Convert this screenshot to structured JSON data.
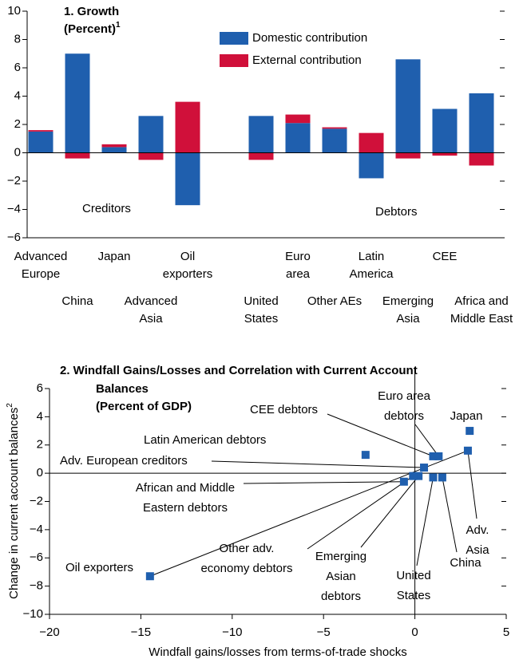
{
  "chart_data": [
    {
      "type": "bar",
      "stacked": true,
      "title": "1. Growth",
      "subtitle": "(Percent)",
      "subtitle_superscript": "1",
      "categories": [
        [
          "Advanced",
          "Europe"
        ],
        [
          "China"
        ],
        [
          "Japan"
        ],
        [
          "Advanced",
          "Asia"
        ],
        [
          "Oil",
          "exporters"
        ],
        null,
        [
          "United",
          "States"
        ],
        [
          "Euro",
          "area"
        ],
        [
          "Other AEs"
        ],
        [
          "Latin",
          "America"
        ],
        [
          "Emerging",
          "Asia"
        ],
        [
          "CEE"
        ],
        [
          "Africa and",
          "Middle East"
        ]
      ],
      "series": [
        {
          "name": "Domestic contribution",
          "color": "#1f5fae",
          "values": [
            1.5,
            7.0,
            0.4,
            2.6,
            -3.7,
            null,
            2.6,
            2.1,
            1.7,
            -1.8,
            6.6,
            3.1,
            4.2
          ]
        },
        {
          "name": "External contribution",
          "color": "#d0103a",
          "values": [
            0.1,
            -0.4,
            0.2,
            -0.5,
            3.6,
            null,
            -0.5,
            0.6,
            0.1,
            1.4,
            -0.4,
            -0.2,
            -0.9
          ]
        }
      ],
      "annotations": [
        "Creditors",
        "Debtors"
      ],
      "ylim": [
        -6,
        10
      ],
      "yticks": [
        {
          "value": -6,
          "label": "−6"
        },
        {
          "value": -4,
          "label": "−4"
        },
        {
          "value": -2,
          "label": "−2"
        },
        0,
        2,
        4,
        6,
        8,
        10
      ]
    },
    {
      "type": "scatter",
      "title": [
        "2. Windfall Gains/Losses and Correlation with Current Account",
        "Balances"
      ],
      "subtitle": "(Percent of GDP)",
      "xlabel": "Windfall gains/losses from terms-of-trade shocks",
      "ylabel": "Change in current account balances",
      "ylabel_superscript": "2",
      "series": [
        {
          "color": "#1f5fae",
          "x": [
            -14.5,
            -2.7,
            0.5,
            1.0,
            1.3,
            3.0,
            -0.6,
            2.9,
            1.5,
            1.0,
            0.2,
            -0.1
          ],
          "values": [
            -7.3,
            1.3,
            0.4,
            1.2,
            1.2,
            3.0,
            -0.6,
            1.6,
            -0.3,
            -0.3,
            -0.2,
            -0.2
          ],
          "labels": [
            [
              "Oil exporters"
            ],
            [
              "Latin American debtors"
            ],
            [
              "Adv. European creditors"
            ],
            [
              "CEE debtors"
            ],
            [
              "Euro area",
              "debtors"
            ],
            [
              "Japan"
            ],
            [
              "African and Middle",
              "Eastern debtors"
            ],
            [
              "Adv.",
              "Asia"
            ],
            [
              "China"
            ],
            [
              "United",
              "States"
            ],
            [
              "Emerging",
              "Asian",
              "debtors"
            ],
            [
              "Other adv.",
              "economy debtors"
            ]
          ]
        }
      ],
      "trendline": {
        "x": [
          -14.5,
          2.9
        ],
        "values": [
          -7.3,
          1.6
        ]
      },
      "xlim": [
        -20,
        5
      ],
      "xticks": [
        {
          "value": -20,
          "label": "−20"
        },
        {
          "value": -15,
          "label": "−15"
        },
        {
          "value": -10,
          "label": "−10"
        },
        {
          "value": -5,
          "label": "−5"
        },
        0,
        5
      ],
      "ylim": [
        -10,
        6
      ],
      "yticks": [
        {
          "value": -10,
          "label": "−10"
        },
        {
          "value": -8,
          "label": "−8"
        },
        {
          "value": -6,
          "label": "−6"
        },
        {
          "value": -4,
          "label": "−4"
        },
        {
          "value": -2,
          "label": "−2"
        },
        0,
        2,
        4,
        6
      ]
    }
  ]
}
